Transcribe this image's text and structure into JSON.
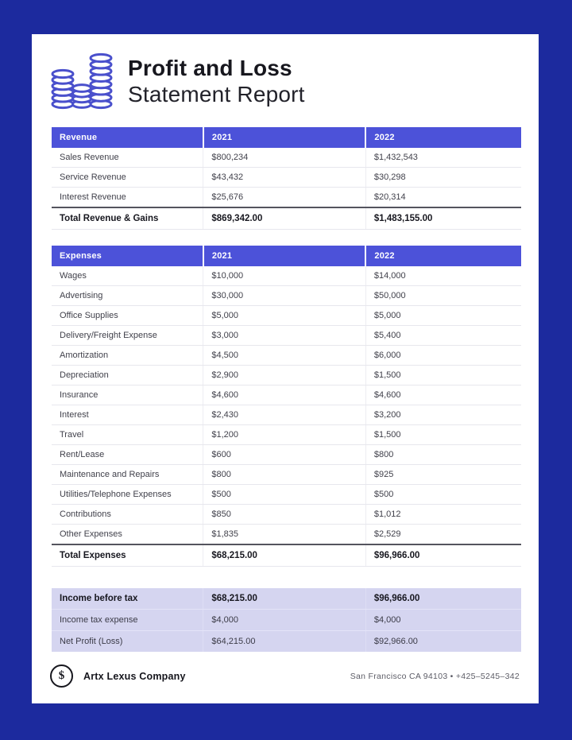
{
  "theme": {
    "border_color": "#1c2a9e",
    "accent_color": "#4c52d9",
    "summary_bg": "#d5d5f0",
    "icon_color": "#4a50cc"
  },
  "header": {
    "title_bold": "Profit and Loss",
    "title_regular": "Statement Report",
    "icon": "coin-stacks-icon"
  },
  "revenue_table": {
    "columns": [
      "Revenue",
      "2021",
      "2022"
    ],
    "rows": [
      [
        "Sales Revenue",
        "$800,234",
        "$1,432,543"
      ],
      [
        "Service Revenue",
        "$43,432",
        "$30,298"
      ],
      [
        "Interest Revenue",
        "$25,676",
        "$20,314"
      ]
    ],
    "total_row": [
      "Total Revenue & Gains",
      "$869,342.00",
      "$1,483,155.00"
    ]
  },
  "expenses_table": {
    "columns": [
      "Expenses",
      "2021",
      "2022"
    ],
    "rows": [
      [
        "Wages",
        "$10,000",
        "$14,000"
      ],
      [
        "Advertising",
        "$30,000",
        "$50,000"
      ],
      [
        "Office Supplies",
        "$5,000",
        "$5,000"
      ],
      [
        "Delivery/Freight Expense",
        "$3,000",
        "$5,400"
      ],
      [
        "Amortization",
        "$4,500",
        "$6,000"
      ],
      [
        "Depreciation",
        "$2,900",
        "$1,500"
      ],
      [
        "Insurance",
        "$4,600",
        "$4,600"
      ],
      [
        "Interest",
        "$2,430",
        "$3,200"
      ],
      [
        "Travel",
        "$1,200",
        "$1,500"
      ],
      [
        "Rent/Lease",
        "$600",
        "$800"
      ],
      [
        "Maintenance and Repairs",
        "$800",
        "$925"
      ],
      [
        "Utilities/Telephone Expenses",
        "$500",
        "$500"
      ],
      [
        "Contributions",
        "$850",
        "$1,012"
      ],
      [
        "Other Expenses",
        "$1,835",
        "$2,529"
      ]
    ],
    "total_row": [
      "Total Expenses",
      "$68,215.00",
      "$96,966.00"
    ]
  },
  "summary_table": {
    "rows": [
      {
        "cells": [
          "Income before tax",
          "$68,215.00",
          "$96,966.00"
        ],
        "bold": true
      },
      {
        "cells": [
          "Income tax expense",
          "$4,000",
          "$4,000"
        ],
        "bold": false
      },
      {
        "cells": [
          "Net Profit (Loss)",
          "$64,215.00",
          "$92,966.00"
        ],
        "bold": false
      }
    ]
  },
  "footer": {
    "company": "Artx Lexus Company",
    "contact": "San Francisco CA 94103 • +425–5245–342",
    "icon": "dollar-circle-icon",
    "icon_glyph": "$"
  }
}
